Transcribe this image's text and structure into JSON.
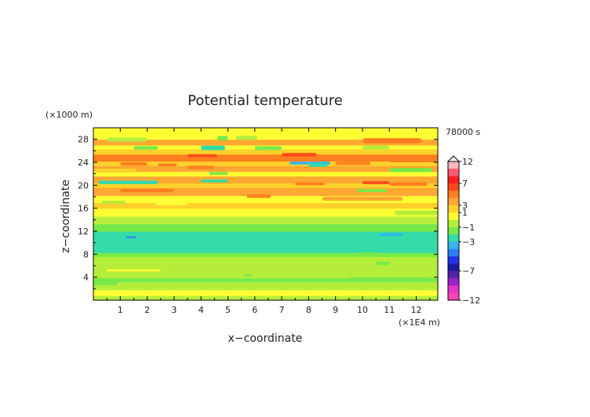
{
  "chart_data": {
    "type": "heatmap",
    "title": "Potential temperature",
    "xlabel": "x−coordinate",
    "ylabel": "z−coordinate",
    "x_unit": "(×1E4 m)",
    "y_unit": "(×1000 m)",
    "time_label": "78000 s",
    "xlim": [
      0,
      12.8
    ],
    "ylim": [
      0,
      30
    ],
    "x_ticks": [
      "1",
      "2",
      "3",
      "4",
      "5",
      "6",
      "7",
      "8",
      "9",
      "10",
      "11",
      "12"
    ],
    "y_ticks": [
      "4",
      "8",
      "12",
      "16",
      "20",
      "24",
      "28"
    ],
    "colorbar": {
      "tick_labels": [
        "12",
        "7",
        "3",
        "1",
        "−1",
        "−3",
        "−7",
        "−12"
      ],
      "levels": [
        {
          "upper": 12,
          "color": "#ffb6bd"
        },
        {
          "upper": 9,
          "color": "#ff5a6e"
        },
        {
          "upper": 7,
          "color": "#ff1f1f"
        },
        {
          "upper": 5,
          "color": "#ff4b1a"
        },
        {
          "upper": 4,
          "color": "#ff7f1f"
        },
        {
          "upper": 3,
          "color": "#ffa832"
        },
        {
          "upper": 2,
          "color": "#ffd12a"
        },
        {
          "upper": 1,
          "color": "#ffff33"
        },
        {
          "upper": 0,
          "color": "#b5ee3a"
        },
        {
          "upper": -1,
          "color": "#77ea4a"
        },
        {
          "upper": -2,
          "color": "#33dba8"
        },
        {
          "upper": -3,
          "color": "#33b5f2"
        },
        {
          "upper": -4,
          "color": "#2f7ff2"
        },
        {
          "upper": -5,
          "color": "#2233e6"
        },
        {
          "upper": -7,
          "color": "#1a1aa6"
        },
        {
          "upper": -8,
          "color": "#5522aa"
        },
        {
          "upper": -9,
          "color": "#9b22c8"
        },
        {
          "upper": -10,
          "color": "#e633c8"
        },
        {
          "upper": -11,
          "color": "#ff44b8"
        }
      ]
    },
    "bands": [
      {
        "z": [
          0.0,
          0.8
        ],
        "value": -0.5
      },
      {
        "z": [
          0.8,
          1.8
        ],
        "value": 0.5
      },
      {
        "z": [
          1.8,
          3.2
        ],
        "value": -0.5
      },
      {
        "z": [
          3.2,
          3.9
        ],
        "value": -1.5
      },
      {
        "z": [
          3.9,
          5.0
        ],
        "value": -0.5
      },
      {
        "z": [
          5.0,
          7.6
        ],
        "value": -0.5
      },
      {
        "z": [
          7.6,
          8.3
        ],
        "value": -1.5
      },
      {
        "z": [
          8.3,
          11.0
        ],
        "value": -2.5
      },
      {
        "z": [
          11.0,
          12.0
        ],
        "value": -2.5
      },
      {
        "z": [
          12.0,
          13.3
        ],
        "value": -1.5
      },
      {
        "z": [
          13.3,
          14.6
        ],
        "value": -0.5
      },
      {
        "z": [
          14.6,
          16.0
        ],
        "value": 0.5
      },
      {
        "z": [
          16.0,
          17.0
        ],
        "value": 1.5
      },
      {
        "z": [
          17.0,
          18.2
        ],
        "value": 0.5
      },
      {
        "z": [
          18.2,
          19.6
        ],
        "value": 2.5
      },
      {
        "z": [
          19.6,
          20.4
        ],
        "value": 1.5
      },
      {
        "z": [
          20.4,
          21.6
        ],
        "value": 2.5
      },
      {
        "z": [
          21.6,
          22.4
        ],
        "value": 0.5
      },
      {
        "z": [
          22.4,
          23.4
        ],
        "value": 2.5
      },
      {
        "z": [
          23.4,
          24.2
        ],
        "value": 1.5
      },
      {
        "z": [
          24.2,
          25.4
        ],
        "value": 3.5
      },
      {
        "z": [
          25.4,
          26.3
        ],
        "value": 1.5
      },
      {
        "z": [
          26.3,
          27.0
        ],
        "value": 0.5
      },
      {
        "z": [
          27.0,
          28.0
        ],
        "value": 2.5
      },
      {
        "z": [
          28.0,
          29.0
        ],
        "value": 0.5
      },
      {
        "z": [
          29.0,
          30.0
        ],
        "value": 0.5
      }
    ],
    "cells": [
      {
        "x": [
          4.0,
          4.9
        ],
        "z": [
          26.1,
          26.9
        ],
        "value": -2.5
      },
      {
        "x": [
          1.5,
          2.4
        ],
        "z": [
          26.2,
          26.8
        ],
        "value": -1.5
      },
      {
        "x": [
          6.0,
          7.0
        ],
        "z": [
          26.1,
          26.8
        ],
        "value": -1.5
      },
      {
        "x": [
          10.0,
          11.0
        ],
        "z": [
          26.2,
          26.9
        ],
        "value": -0.5
      },
      {
        "x": [
          4.6,
          5.0
        ],
        "z": [
          27.8,
          28.6
        ],
        "value": -1.5
      },
      {
        "x": [
          0.5,
          2.0
        ],
        "z": [
          27.6,
          28.3
        ],
        "value": -0.5
      },
      {
        "x": [
          5.3,
          6.1
        ],
        "z": [
          27.9,
          28.6
        ],
        "value": -0.5
      },
      {
        "x": [
          10.0,
          12.2
        ],
        "z": [
          27.3,
          28.2
        ],
        "value": 3.5
      },
      {
        "x": [
          7.0,
          8.3
        ],
        "z": [
          25.0,
          25.6
        ],
        "value": 4.5
      },
      {
        "x": [
          7.3,
          8.8
        ],
        "z": [
          23.6,
          24.1
        ],
        "value": -3.5
      },
      {
        "x": [
          8.0,
          8.7
        ],
        "z": [
          23.2,
          23.8
        ],
        "value": -2.5
      },
      {
        "x": [
          9.0,
          10.3
        ],
        "z": [
          23.5,
          24.1
        ],
        "value": 3.5
      },
      {
        "x": [
          11.0,
          12.6
        ],
        "z": [
          22.3,
          23.0
        ],
        "value": -1.5
      },
      {
        "x": [
          11.0,
          12.8
        ],
        "z": [
          24.0,
          24.5
        ],
        "value": 3.5
      },
      {
        "x": [
          2.4,
          3.1
        ],
        "z": [
          23.3,
          23.8
        ],
        "value": 3.5
      },
      {
        "x": [
          3.5,
          4.6
        ],
        "z": [
          24.9,
          25.4
        ],
        "value": 4.5
      },
      {
        "x": [
          1.0,
          2.0
        ],
        "z": [
          23.4,
          24.0
        ],
        "value": 3.5
      },
      {
        "x": [
          0.2,
          2.4
        ],
        "z": [
          20.2,
          20.8
        ],
        "value": -2.5
      },
      {
        "x": [
          4.0,
          5.0
        ],
        "z": [
          20.5,
          21.0
        ],
        "value": -2.5
      },
      {
        "x": [
          9.8,
          10.9
        ],
        "z": [
          18.8,
          19.3
        ],
        "value": -1.5
      },
      {
        "x": [
          11.0,
          12.4
        ],
        "z": [
          19.9,
          20.5
        ],
        "value": 3.5
      },
      {
        "x": [
          10.0,
          11.0
        ],
        "z": [
          20.2,
          20.7
        ],
        "value": 4.5
      },
      {
        "x": [
          3.5,
          4.5
        ],
        "z": [
          22.8,
          23.4
        ],
        "value": 3.5
      },
      {
        "x": [
          7.5,
          8.6
        ],
        "z": [
          20.0,
          20.5
        ],
        "value": 3.5
      },
      {
        "x": [
          4.3,
          5.0
        ],
        "z": [
          21.8,
          22.3
        ],
        "value": -1.5
      },
      {
        "x": [
          0.3,
          1.2
        ],
        "z": [
          16.8,
          17.3
        ],
        "value": -0.5
      },
      {
        "x": [
          2.3,
          3.5
        ],
        "z": [
          16.5,
          17.2
        ],
        "value": 0.5
      },
      {
        "x": [
          8.5,
          11.5
        ],
        "z": [
          17.3,
          18.0
        ],
        "value": 2.5
      },
      {
        "x": [
          1.0,
          3.0
        ],
        "z": [
          18.8,
          19.4
        ],
        "value": 3.5
      },
      {
        "x": [
          5.7,
          6.6
        ],
        "z": [
          17.8,
          18.4
        ],
        "value": 3.5
      },
      {
        "x": [
          0.0,
          1.6
        ],
        "z": [
          22.2,
          22.9
        ],
        "value": 1.5
      },
      {
        "x": [
          11.2,
          12.8
        ],
        "z": [
          14.8,
          15.6
        ],
        "value": -0.5
      },
      {
        "x": [
          1.2,
          1.6
        ],
        "z": [
          10.8,
          11.1
        ],
        "value": -4.5
      },
      {
        "x": [
          10.6,
          11.5
        ],
        "z": [
          11.2,
          11.6
        ],
        "value": -3.5
      },
      {
        "x": [
          9.8,
          10.6
        ],
        "z": [
          7.5,
          8.3
        ],
        "value": -1.5
      },
      {
        "x": [
          10.5,
          11.0
        ],
        "z": [
          6.1,
          6.7
        ],
        "value": -1.5
      },
      {
        "x": [
          0.5,
          2.5
        ],
        "z": [
          5.0,
          5.4
        ],
        "value": 0.5
      },
      {
        "x": [
          5.6,
          5.9
        ],
        "z": [
          4.1,
          4.5
        ],
        "value": -1.5
      },
      {
        "x": [
          7.7,
          8.1
        ],
        "z": [
          3.4,
          3.8
        ],
        "value": -1.5
      },
      {
        "x": [
          9.5,
          12.5
        ],
        "z": [
          3.6,
          4.0
        ],
        "value": -1.5
      },
      {
        "x": [
          0.0,
          0.9
        ],
        "z": [
          2.6,
          3.1
        ],
        "value": -1.5
      }
    ],
    "grid": false,
    "legend": "colorbar right"
  }
}
